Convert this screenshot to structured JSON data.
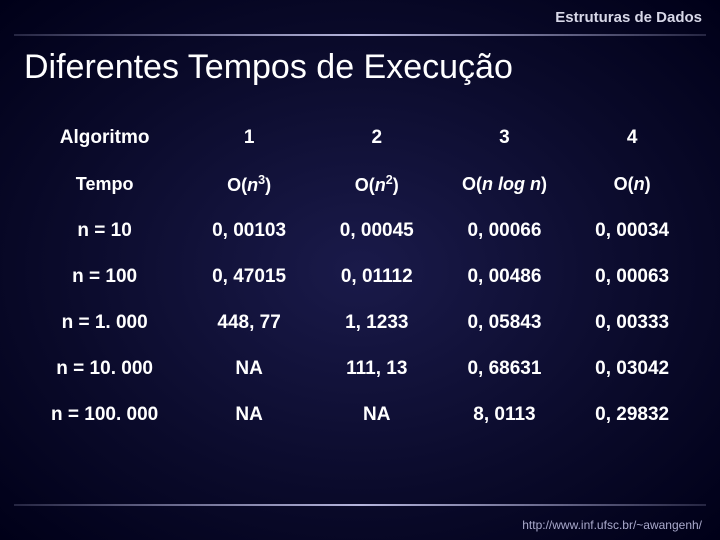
{
  "header": {
    "text": "Estruturas de Dados"
  },
  "footer": {
    "url": "http://www.inf.ufsc.br/~awangenh/"
  },
  "title": "Diferentes Tempos de Execução",
  "table": {
    "head": {
      "label": "Algoritmo",
      "cols": [
        "1",
        "2",
        "3",
        "4"
      ]
    },
    "complexity": {
      "label": "Tempo",
      "values_html": [
        "O(<span class='ital'>n</span><sup>3</sup>)",
        "O(<span class='ital'>n</span><sup>2</sup>)",
        "O(<span class='ital'>n log n</span>)",
        "O(<span class='ital'>n</span>)"
      ]
    },
    "rows": [
      {
        "label": "n = 10",
        "cells": [
          "0, 00103",
          "0, 00045",
          "0, 00066",
          "0, 00034"
        ]
      },
      {
        "label": "n = 100",
        "cells": [
          "0, 47015",
          "0, 01112",
          "0, 00486",
          "0, 00063"
        ]
      },
      {
        "label": "n = 1. 000",
        "cells": [
          "448, 77",
          "1, 1233",
          "0, 05843",
          "0, 00333"
        ]
      },
      {
        "label": "n = 10. 000",
        "cells": [
          "NA",
          "111, 13",
          "0, 68631",
          "0, 03042"
        ]
      },
      {
        "label": "n = 100. 000",
        "cells": [
          "NA",
          "NA",
          "8, 0113",
          "0, 29832"
        ]
      }
    ]
  },
  "style": {
    "title_fontsize": 34,
    "cell_fontsize": 19,
    "text_color": "#ffffff",
    "bg_center": "#1a1a4a",
    "bg_edge": "#000018",
    "rule_color": "#c8c8f0"
  }
}
